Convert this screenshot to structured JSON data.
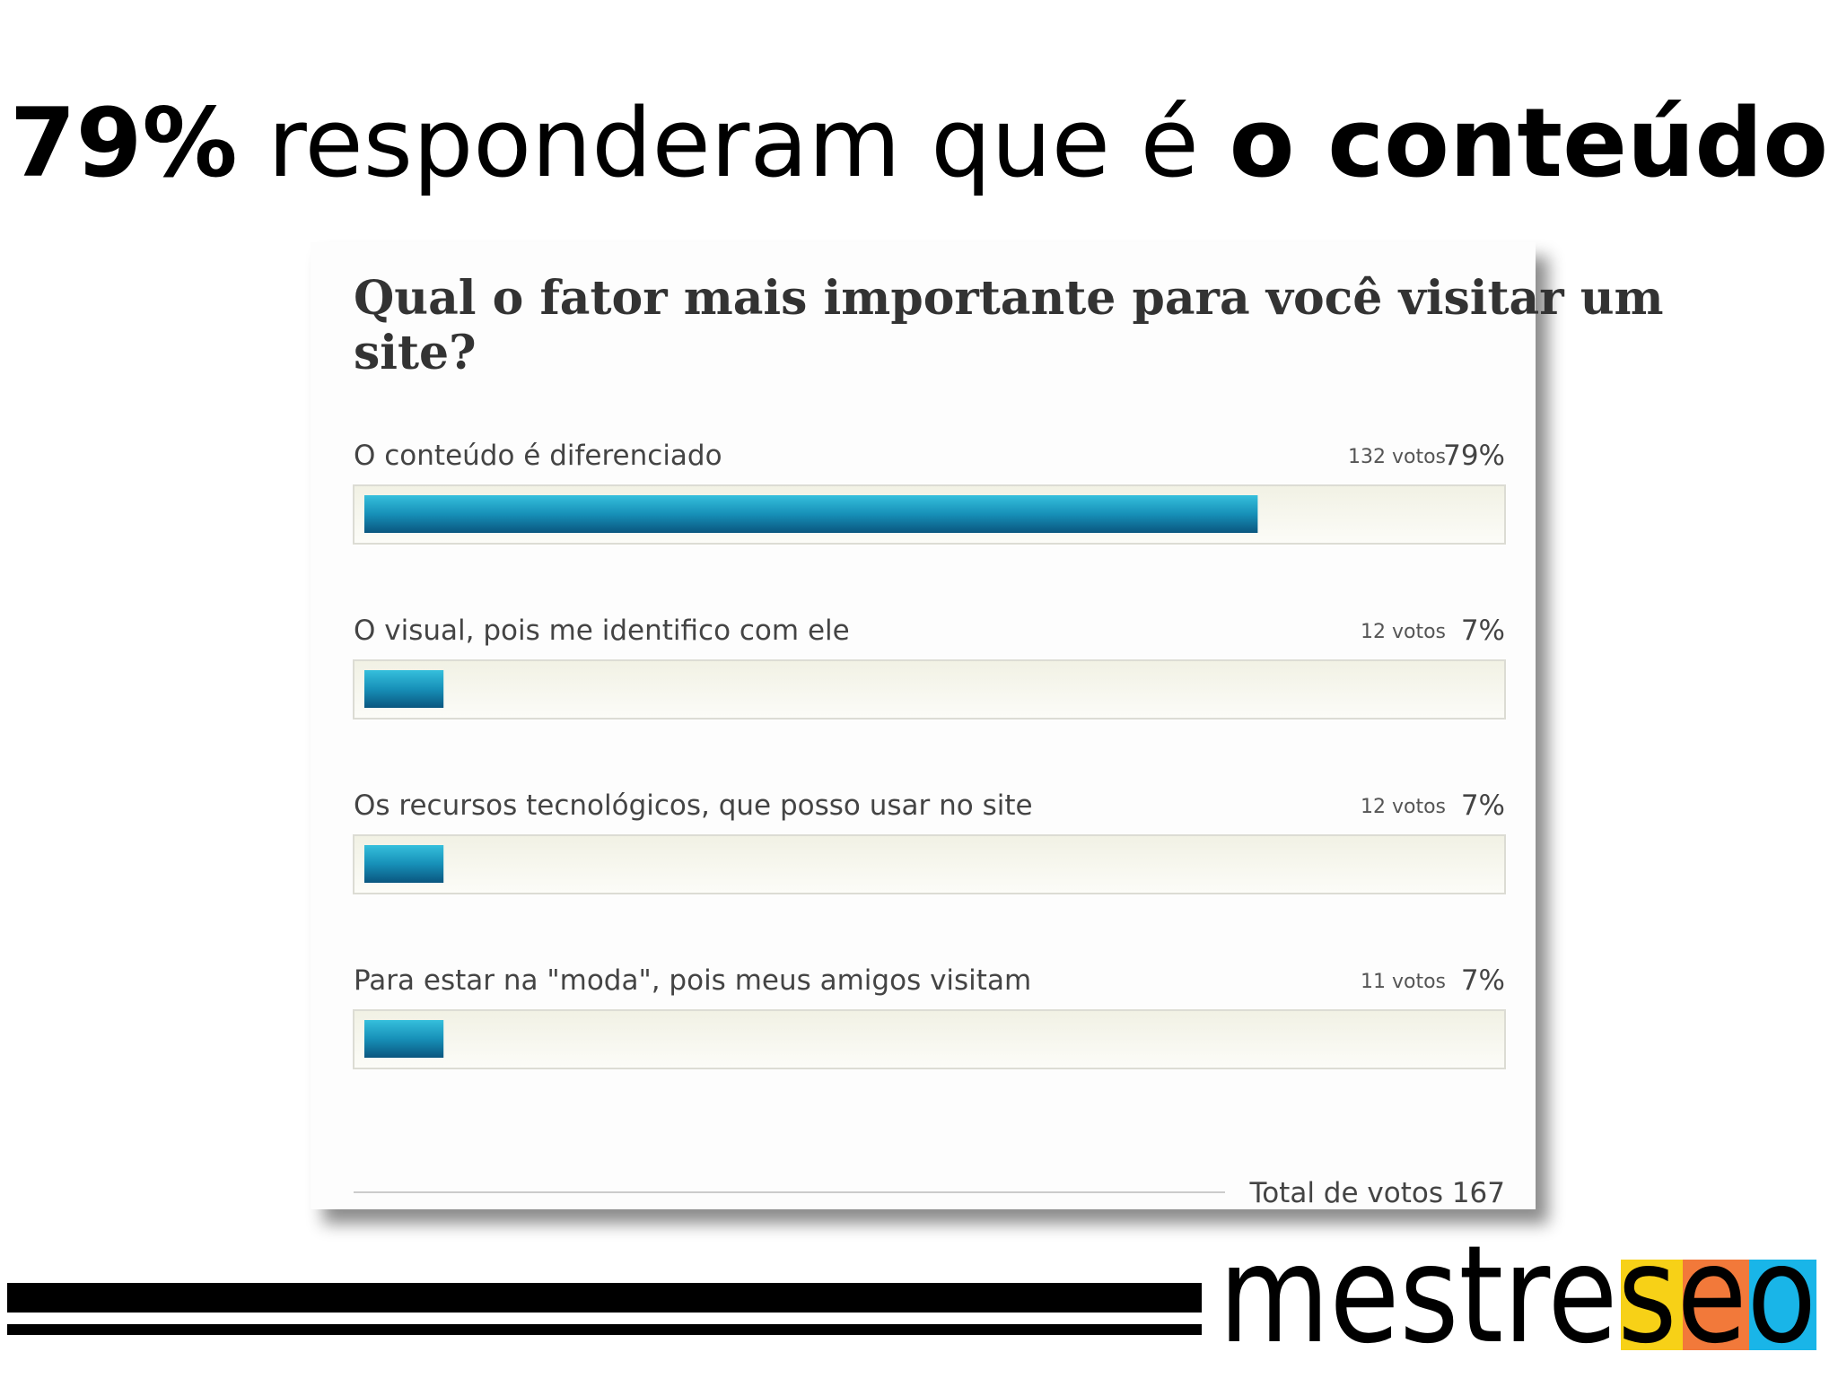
{
  "slide_title": {
    "parts": [
      "79%",
      " responderam que é ",
      "o conteúdo"
    ]
  },
  "poll": {
    "question": [
      "Qual o fator mais importante para você visitar um",
      "site?"
    ],
    "options": [
      {
        "label": "O conteúdo é diferenciado",
        "votes": "132 votos",
        "percent": 79,
        "percent_label": "79%"
      },
      {
        "label": "O visual, pois me identifico com ele",
        "votes": "12 votos",
        "percent": 7,
        "percent_label": "7%"
      },
      {
        "label": "Os recursos tecnológicos, que posso usar no site",
        "votes": "12 votos",
        "percent": 7,
        "percent_label": "7%"
      },
      {
        "label": "Para estar na \"moda\", pois meus amigos visitam",
        "votes": "11 votos",
        "percent": 7,
        "percent_label": "7%"
      }
    ],
    "percent_range": [
      0,
      100
    ],
    "total": "Total de votos 167"
  },
  "logo": {
    "parts": [
      "mestre",
      "s",
      "e",
      "o"
    ]
  }
}
